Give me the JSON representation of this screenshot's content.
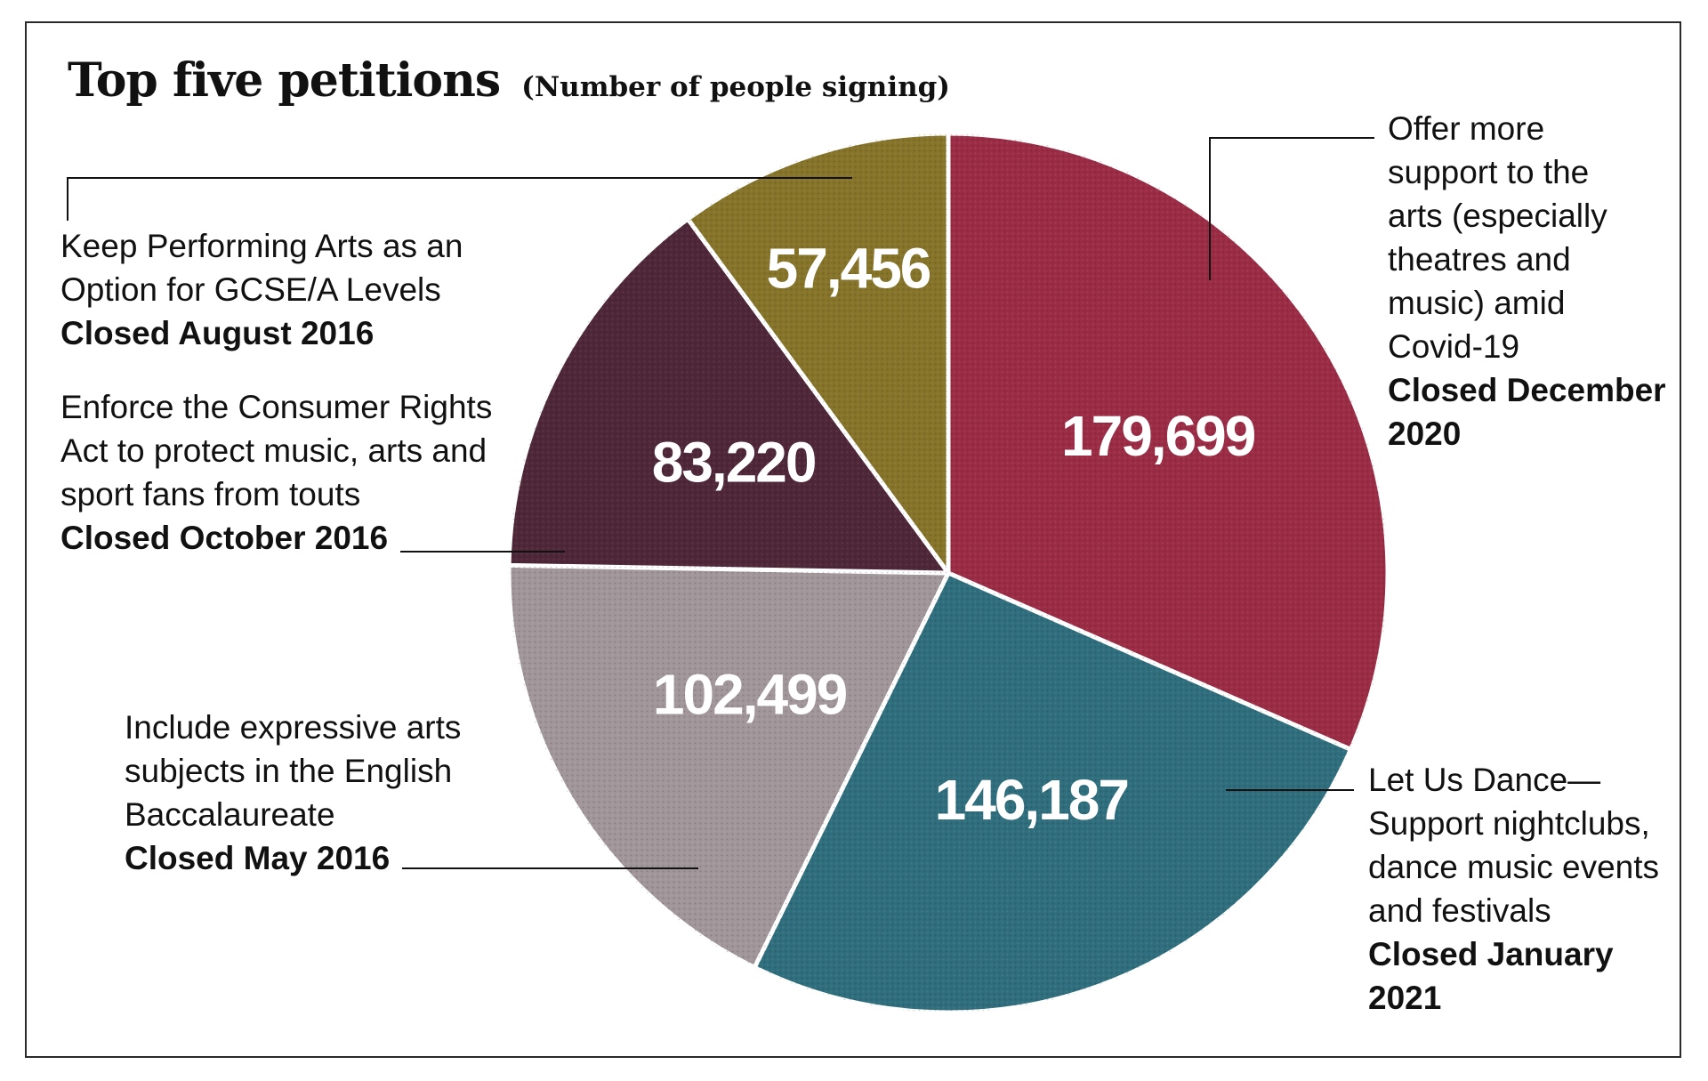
{
  "title": "Top five petitions",
  "subtitle": "(Number of people signing)",
  "colors": {
    "arts_support": "#9b2c45",
    "let_us_dance": "#2f6e7d",
    "expressive_arts": "#a1969a",
    "consumer_rights": "#4e2738",
    "gcse": "#857429",
    "leader_line": "#111111",
    "slice_border": "#ffffff"
  },
  "chart_data": {
    "type": "pie",
    "title": "Top five petitions",
    "subtitle": "(Number of people signing)",
    "slices": [
      {
        "id": "arts_support",
        "value": 179699,
        "value_label": "179,699",
        "label_lines": [
          "Offer more",
          "support to the",
          "arts (especially",
          "theatres and",
          "music) amid",
          "Covid-19"
        ],
        "closed_lines": [
          "Closed December",
          "2020"
        ]
      },
      {
        "id": "let_us_dance",
        "value": 146187,
        "value_label": "146,187",
        "label_lines": [
          "Let Us Dance—",
          "Support nightclubs,",
          "dance music events",
          "and festivals"
        ],
        "closed_lines": [
          "Closed January",
          "2021"
        ]
      },
      {
        "id": "expressive_arts",
        "value": 102499,
        "value_label": "102,499",
        "label_lines": [
          "Include expressive arts",
          "subjects in the English",
          "Baccalaureate"
        ],
        "closed_lines": [
          "Closed May 2016"
        ]
      },
      {
        "id": "consumer_rights",
        "value": 83220,
        "value_label": "83,220",
        "label_lines": [
          "Enforce the Consumer Rights",
          "Act to protect music, arts and",
          "sport fans from touts"
        ],
        "closed_lines": [
          "Closed October 2016"
        ]
      },
      {
        "id": "gcse",
        "value": 57456,
        "value_label": "57,456",
        "label_lines": [
          "Keep Performing Arts as an",
          "Option for GCSE/A Levels"
        ],
        "closed_lines": [
          "Closed August 2016"
        ]
      }
    ]
  }
}
